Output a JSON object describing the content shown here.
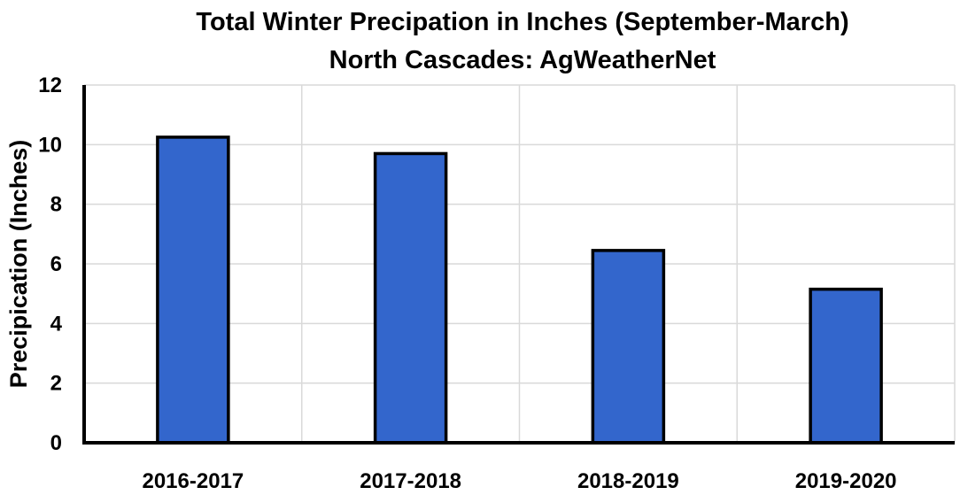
{
  "chart_data": {
    "type": "bar",
    "title": "Total Winter Precipation in Inches (September-March)",
    "subtitle": "North Cascades: AgWeatherNet",
    "xlabel": "",
    "ylabel": "Precipication (Inches)",
    "categories": [
      "2016-2017",
      "2017-2018",
      "2018-2019",
      "2019-2020"
    ],
    "values": [
      10.25,
      9.7,
      6.45,
      5.15
    ],
    "ylim": [
      0,
      12
    ],
    "yticks": [
      "0",
      "2",
      "4",
      "6",
      "8",
      "10",
      "12"
    ],
    "grid": true,
    "legend": "none",
    "colors": {
      "bar": "#3366cc",
      "bar_border": "#000000",
      "grid": "#d9d9d9"
    }
  }
}
